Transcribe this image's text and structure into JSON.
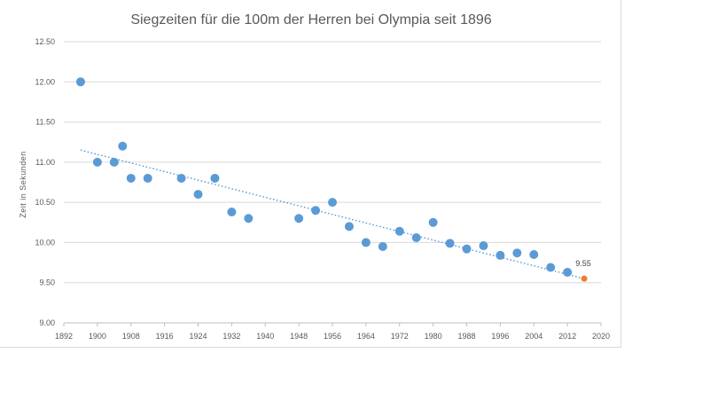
{
  "chart_data": {
    "type": "scatter",
    "title": "Siegzeiten für die 100m der Herren bei Olympia seit 1896",
    "xlabel": "",
    "ylabel": "Zeit in Sekunden",
    "xlim": [
      1892,
      2020
    ],
    "ylim": [
      9.0,
      12.5
    ],
    "x_ticks": [
      "1892",
      "1900",
      "1908",
      "1916",
      "1924",
      "1932",
      "1940",
      "1948",
      "1956",
      "1964",
      "1972",
      "1980",
      "1988",
      "1996",
      "2004",
      "2012",
      "2020"
    ],
    "y_ticks": [
      "12.50",
      "12.00",
      "11.50",
      "11.00",
      "10.50",
      "10.00",
      "9.50",
      "9.00"
    ],
    "grid": true,
    "legend": "none",
    "series": [
      {
        "color": "#5b9bd5",
        "points": [
          [
            1896,
            12.0
          ],
          [
            1900,
            11.0
          ],
          [
            1904,
            11.0
          ],
          [
            1906,
            11.2
          ],
          [
            1908,
            10.8
          ],
          [
            1912,
            10.8
          ],
          [
            1920,
            10.8
          ],
          [
            1924,
            10.6
          ],
          [
            1928,
            10.8
          ],
          [
            1932,
            10.38
          ],
          [
            1936,
            10.3
          ],
          [
            1948,
            10.3
          ],
          [
            1952,
            10.4
          ],
          [
            1956,
            10.5
          ],
          [
            1960,
            10.2
          ],
          [
            1964,
            10.0
          ],
          [
            1968,
            9.95
          ],
          [
            1972,
            10.14
          ],
          [
            1976,
            10.06
          ],
          [
            1980,
            10.25
          ],
          [
            1984,
            9.99
          ],
          [
            1988,
            9.92
          ],
          [
            1992,
            9.96
          ],
          [
            1996,
            9.84
          ],
          [
            2000,
            9.87
          ],
          [
            2004,
            9.85
          ],
          [
            2008,
            9.69
          ],
          [
            2012,
            9.63
          ]
        ]
      },
      {
        "color": "#ed7d31",
        "points": [
          [
            2016,
            9.55
          ]
        ],
        "data_labels": [
          "9.55"
        ]
      }
    ],
    "trendline": {
      "type": "linear",
      "style": "dotted",
      "color": "#5b9bd5",
      "from": [
        1896,
        11.15
      ],
      "to": [
        2016,
        9.55
      ]
    }
  }
}
